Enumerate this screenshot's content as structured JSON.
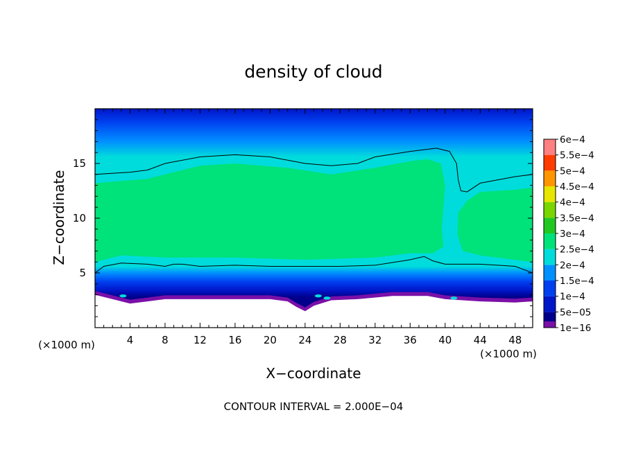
{
  "chart_data": {
    "type": "heatmap",
    "title": "density of cloud",
    "xlabel": "X−coordinate",
    "ylabel": "Z−coordinate",
    "x_unit_left": "(×1000 m)",
    "x_unit_right": "(×1000 m)",
    "footer": "CONTOUR INTERVAL = 2.000E−04",
    "xlim": [
      0,
      50
    ],
    "ylim": [
      0,
      20
    ],
    "x_ticks": [
      4,
      8,
      12,
      16,
      20,
      24,
      28,
      32,
      36,
      40,
      44,
      48
    ],
    "x_tick_labels": [
      "4",
      "8",
      "12",
      "16",
      "20",
      "24",
      "28",
      "32",
      "36",
      "40",
      "44",
      "48"
    ],
    "y_ticks": [
      5,
      10,
      15
    ],
    "y_tick_labels": [
      "5",
      "10",
      "15"
    ],
    "colorbar": {
      "levels": [
        "1e−16",
        "5e−05",
        "1e−4",
        "1.5e−4",
        "2e−4",
        "2.5e−4",
        "3e−4",
        "3.5e−4",
        "4e−4",
        "4.5e−4",
        "5e−4",
        "5.5e−4",
        "6e−4"
      ],
      "colors": [
        "#7a10a8",
        "#00008c",
        "#0016c8",
        "#0040f0",
        "#0090ff",
        "#00dcdc",
        "#00e27a",
        "#22c822",
        "#7ad600",
        "#e6e600",
        "#ff9600",
        "#ff3c00",
        "#ff8080"
      ]
    },
    "contour_level": "2e−4",
    "upper_contour": [
      [
        0,
        14.0
      ],
      [
        4,
        14.2
      ],
      [
        6,
        14.4
      ],
      [
        8,
        15.0
      ],
      [
        12,
        15.6
      ],
      [
        16,
        15.8
      ],
      [
        20,
        15.6
      ],
      [
        24,
        15.0
      ],
      [
        27,
        14.8
      ],
      [
        30,
        15.0
      ],
      [
        32,
        15.6
      ],
      [
        36,
        16.1
      ],
      [
        39,
        16.4
      ],
      [
        40.5,
        16.1
      ],
      [
        41.3,
        15.0
      ],
      [
        41.5,
        13.5
      ],
      [
        41.8,
        12.5
      ],
      [
        42.5,
        12.4
      ],
      [
        44,
        13.2
      ],
      [
        48,
        13.8
      ],
      [
        50,
        14.0
      ]
    ],
    "lower_contour": [
      [
        0,
        5.0
      ],
      [
        1,
        5.6
      ],
      [
        3,
        5.9
      ],
      [
        6,
        5.8
      ],
      [
        8,
        5.6
      ],
      [
        9,
        5.8
      ],
      [
        10,
        5.8
      ],
      [
        12,
        5.6
      ],
      [
        16,
        5.7
      ],
      [
        20,
        5.6
      ],
      [
        24,
        5.6
      ],
      [
        28,
        5.6
      ],
      [
        32,
        5.7
      ],
      [
        36,
        6.2
      ],
      [
        37.6,
        6.5
      ],
      [
        38.6,
        6.1
      ],
      [
        40,
        5.8
      ],
      [
        44,
        5.8
      ],
      [
        46,
        5.7
      ],
      [
        48,
        5.6
      ],
      [
        50,
        5.0
      ]
    ],
    "cloud_base": [
      [
        0,
        3.0
      ],
      [
        2,
        2.6
      ],
      [
        4,
        2.2
      ],
      [
        6,
        2.4
      ],
      [
        8,
        2.6
      ],
      [
        12,
        2.6
      ],
      [
        16,
        2.6
      ],
      [
        20,
        2.6
      ],
      [
        22,
        2.4
      ],
      [
        23,
        1.9
      ],
      [
        24,
        1.5
      ],
      [
        25,
        2.0
      ],
      [
        27,
        2.5
      ],
      [
        30,
        2.6
      ],
      [
        34,
        2.9
      ],
      [
        38,
        2.9
      ],
      [
        40,
        2.6
      ],
      [
        44,
        2.4
      ],
      [
        48,
        2.3
      ],
      [
        50,
        2.4
      ]
    ],
    "fill_bands": [
      {
        "level": "2.5e−4",
        "color": "#00e27a",
        "top": [
          [
            0,
            13.2
          ],
          [
            6,
            13.6
          ],
          [
            12,
            14.8
          ],
          [
            16,
            15.0
          ],
          [
            22,
            14.6
          ],
          [
            27,
            14.0
          ],
          [
            32,
            14.6
          ],
          [
            36,
            15.2
          ],
          [
            38,
            15.4
          ],
          [
            39.5,
            15.0
          ],
          [
            40,
            13.0
          ],
          [
            39.6,
            9.0
          ],
          [
            39.8,
            7.4
          ],
          [
            38.6,
            6.8
          ],
          [
            36,
            6.8
          ],
          [
            32,
            6.4
          ],
          [
            24,
            6.2
          ],
          [
            16,
            6.4
          ],
          [
            8,
            6.4
          ],
          [
            3,
            6.6
          ],
          [
            0,
            6.0
          ]
        ]
      },
      {
        "level": "2.5e−4",
        "color": "#00e27a",
        "top": [
          [
            42.5,
            11.6
          ],
          [
            44,
            12.4
          ],
          [
            48,
            12.6
          ],
          [
            50,
            12.8
          ],
          [
            50,
            6.0
          ],
          [
            46,
            6.4
          ],
          [
            44,
            6.6
          ],
          [
            42,
            7.0
          ],
          [
            41.4,
            8.5
          ],
          [
            41.5,
            10.5
          ]
        ]
      }
    ],
    "hotspots": [
      [
        3.2,
        2.9
      ],
      [
        25.5,
        2.9
      ],
      [
        26.5,
        2.7
      ],
      [
        41,
        2.7
      ]
    ]
  }
}
